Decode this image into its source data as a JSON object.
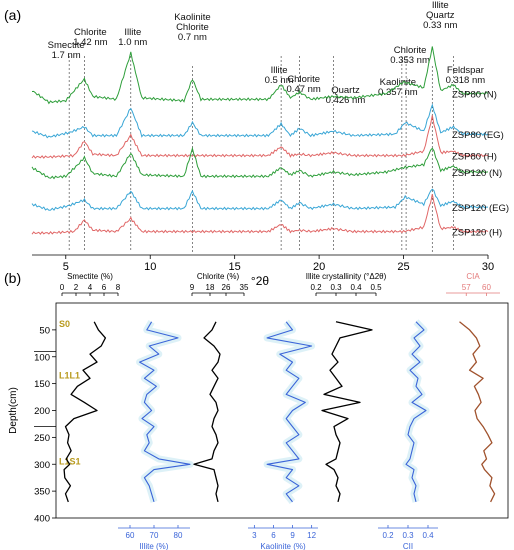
{
  "panel_labels": {
    "a": "(a)",
    "b": "(b)"
  },
  "chart_data": [
    {
      "type": "line",
      "panel": "(a)",
      "xlabel": "°2θ",
      "ylabel": "",
      "xlim": [
        3,
        30
      ],
      "xticks": [
        5,
        10,
        15,
        20,
        25,
        30
      ],
      "series_colors": {
        "N": "#2e9e3a",
        "EG": "#39a6d6",
        "H": "#e06666"
      },
      "peak_markers": [
        {
          "label": "Smectite\n1.7 nm",
          "x": 5.2
        },
        {
          "label": "Chlorite\n1.42 nm",
          "x": 6.1
        },
        {
          "label": "Illite\n1.0 nm",
          "x": 8.85
        },
        {
          "label": "Kaolinite\nChlorite\n0.7 nm",
          "x": 12.5
        },
        {
          "label": "Illite\n0.5 nm",
          "x": 17.75
        },
        {
          "label": "Chlorite\n0.47 nm",
          "x": 18.85
        },
        {
          "label": "Quartz\n0.426 nm",
          "x": 20.85
        },
        {
          "label": "Kaolinite\n0.357 nm",
          "x": 24.9
        },
        {
          "label": "Chlorite\n0.353 nm",
          "x": 25.15
        },
        {
          "label": "Illite\nQuartz\n0.33 nm",
          "x": 26.7
        },
        {
          "label": "Feldspar\n0.318 nm",
          "x": 27.95
        }
      ],
      "series": [
        {
          "name": "ZSP80 (N)",
          "group": "ZSP80",
          "treatment": "N",
          "x": [
            3,
            4,
            5,
            5.8,
            6.1,
            6.6,
            8,
            8.85,
            9.5,
            12,
            12.5,
            13,
            17,
            17.75,
            18.3,
            18.85,
            19.5,
            20.85,
            22,
            24,
            25,
            26.2,
            26.7,
            27.2,
            27.95,
            28.5,
            30
          ],
          "y": [
            0.6,
            0.2,
            0.25,
            0.8,
            1.0,
            0.4,
            0.3,
            1.9,
            0.35,
            0.25,
            1.0,
            0.3,
            0.3,
            0.8,
            0.35,
            0.55,
            0.3,
            0.4,
            0.35,
            0.5,
            0.9,
            0.7,
            2.1,
            0.6,
            0.8,
            0.5,
            0.5
          ]
        },
        {
          "name": "ZSP80 (EG)",
          "group": "ZSP80",
          "treatment": "EG",
          "x": [
            3,
            4,
            5.2,
            6.1,
            6.6,
            8,
            8.85,
            9.5,
            12,
            12.5,
            13,
            17,
            17.75,
            18.3,
            18.85,
            19.5,
            20.85,
            22,
            24.5,
            25.1,
            26.2,
            26.7,
            27.2,
            27.95,
            28.5,
            30
          ],
          "y": [
            0.2,
            0.0,
            0.15,
            0.35,
            0.05,
            0.05,
            1.0,
            0.05,
            0.05,
            0.5,
            0.05,
            0.05,
            0.45,
            0.05,
            0.3,
            0.05,
            0.2,
            0.05,
            0.1,
            0.5,
            0.2,
            1.1,
            0.15,
            0.35,
            0.1,
            0.1
          ]
        },
        {
          "name": "ZSP80 (H)",
          "group": "ZSP80",
          "treatment": "H",
          "x": [
            3,
            4,
            5.5,
            6.1,
            6.6,
            8,
            8.85,
            9.5,
            12,
            12.5,
            13,
            17,
            17.75,
            18.3,
            18.85,
            19.5,
            20.85,
            22,
            25,
            26.2,
            26.7,
            27.2,
            27.95,
            28.5,
            30
          ],
          "y": [
            0.0,
            0.0,
            0.05,
            0.55,
            0.1,
            0.05,
            0.75,
            0.05,
            0.05,
            0.05,
            0.05,
            0.05,
            0.35,
            0.05,
            0.1,
            0.05,
            0.15,
            0.05,
            0.05,
            0.2,
            1.4,
            0.15,
            0.2,
            0.05,
            0.05
          ]
        },
        {
          "name": "ZSP120 (N)",
          "group": "ZSP120",
          "treatment": "N",
          "x": [
            3,
            4,
            5,
            5.8,
            6.1,
            6.6,
            8,
            8.85,
            9.5,
            12,
            12.5,
            13,
            17,
            17.75,
            18.3,
            18.85,
            19.5,
            20.85,
            22,
            24,
            25,
            26.2,
            26.7,
            27.2,
            27.95,
            28.5,
            30
          ],
          "y": [
            0.6,
            0.25,
            0.3,
            0.75,
            0.95,
            0.4,
            0.3,
            1.1,
            0.35,
            0.3,
            1.25,
            0.3,
            0.3,
            0.6,
            0.35,
            0.5,
            0.3,
            0.45,
            0.35,
            0.45,
            0.6,
            0.7,
            1.3,
            0.5,
            0.65,
            0.45,
            0.45
          ]
        },
        {
          "name": "ZSP120 (EG)",
          "group": "ZSP120",
          "treatment": "EG",
          "x": [
            3,
            4,
            5.2,
            6.1,
            6.6,
            8,
            8.85,
            9.5,
            12,
            12.5,
            13,
            17,
            17.75,
            18.3,
            18.85,
            19.5,
            20.85,
            22,
            24.5,
            25.1,
            26.2,
            26.7,
            27.2,
            27.95,
            28.5,
            30
          ],
          "y": [
            0.2,
            0.0,
            0.15,
            0.35,
            0.05,
            0.05,
            0.65,
            0.05,
            0.05,
            0.65,
            0.05,
            0.05,
            0.35,
            0.05,
            0.25,
            0.05,
            0.2,
            0.05,
            0.1,
            0.45,
            0.2,
            0.75,
            0.15,
            0.3,
            0.1,
            0.1
          ]
        },
        {
          "name": "ZSP120 (H)",
          "group": "ZSP120",
          "treatment": "H",
          "x": [
            3,
            4,
            5.5,
            6.1,
            6.6,
            8,
            8.85,
            9.5,
            12,
            12.5,
            13,
            17,
            17.75,
            18.3,
            18.85,
            19.5,
            20.85,
            22,
            25,
            26.2,
            26.7,
            27.2,
            27.95,
            28.5,
            30
          ],
          "y": [
            0.0,
            0.0,
            0.05,
            0.45,
            0.1,
            0.05,
            0.5,
            0.05,
            0.05,
            0.05,
            0.05,
            0.05,
            0.3,
            0.05,
            0.1,
            0.05,
            0.15,
            0.05,
            0.05,
            0.2,
            1.3,
            0.15,
            0.2,
            0.05,
            0.05
          ]
        }
      ],
      "grid": false
    },
    {
      "type": "line",
      "panel": "(b)",
      "orientation": "vertical-profile",
      "ylabel": "Depth(cm)",
      "ylim": [
        0,
        400
      ],
      "yticks": [
        50,
        100,
        150,
        200,
        250,
        300,
        350,
        400
      ],
      "stratigraphic_units": [
        {
          "label": "S0",
          "top": 0,
          "bottom": 90
        },
        {
          "label": "L1L1",
          "top": 90,
          "bottom": 230
        },
        {
          "label": "L1S1",
          "top": 230,
          "bottom": 400
        }
      ],
      "unit_label_color": "#b89a1e",
      "depth": [
        35,
        50,
        65,
        80,
        95,
        110,
        125,
        140,
        155,
        170,
        185,
        200,
        215,
        230,
        245,
        260,
        275,
        290,
        300,
        310,
        325,
        340,
        355,
        370
      ],
      "tracks": [
        {
          "name": "Smectite (%)",
          "axis_position": "top",
          "xlim": [
            0,
            8
          ],
          "xticks": [
            0,
            2,
            4,
            6,
            8
          ],
          "color": "#000000",
          "values": [
            4.6,
            5.2,
            6.2,
            5.6,
            4.0,
            5.0,
            3.0,
            4.0,
            2.2,
            1.3,
            3.2,
            5.0,
            1.7,
            0.5,
            1.0,
            0.8,
            1.3,
            0.6,
            1.1,
            0.3,
            0.4,
            1.2,
            0.5,
            0.9
          ]
        },
        {
          "name": "Illite (%)",
          "axis_position": "bottom",
          "xlim": [
            55,
            85
          ],
          "xticks": [
            60,
            70,
            80
          ],
          "color": "#3a64d8",
          "values": [
            69,
            67,
            80,
            68,
            72,
            64,
            70,
            66,
            71,
            67,
            66,
            69,
            65,
            70,
            67,
            68,
            66,
            72,
            85,
            70,
            66,
            68,
            69,
            70
          ]
        },
        {
          "name": "Chlorite (%)",
          "axis_position": "top",
          "xlim": [
            9,
            35
          ],
          "xticks": [
            9,
            18,
            26,
            35
          ],
          "color": "#000000",
          "values": [
            21,
            19,
            15,
            20,
            23,
            22,
            19,
            22,
            20,
            18,
            21,
            22,
            20,
            19,
            21,
            22,
            20,
            19,
            10,
            20,
            21,
            22,
            21,
            22
          ]
        },
        {
          "name": "Kaolinite (%)",
          "axis_position": "bottom",
          "xlim": [
            2,
            13
          ],
          "xticks": [
            3,
            6,
            9,
            12
          ],
          "color": "#3a64d8",
          "values": [
            8,
            9,
            5,
            12,
            7,
            9,
            8,
            10,
            9,
            8,
            11,
            9,
            8,
            9,
            10,
            8,
            9,
            10,
            5,
            9,
            8,
            10,
            8,
            9
          ]
        },
        {
          "name": "Illite crystallinity (°Δ2θ)",
          "axis_position": "top",
          "xlim": [
            0.2,
            0.5
          ],
          "xticks": [
            0.2,
            0.3,
            0.4,
            0.5
          ],
          "color": "#000000",
          "values": [
            0.3,
            0.48,
            0.32,
            0.3,
            0.28,
            0.31,
            0.27,
            0.3,
            0.33,
            0.24,
            0.42,
            0.23,
            0.36,
            0.29,
            0.3,
            0.32,
            0.31,
            0.3,
            0.25,
            0.29,
            0.31,
            0.3,
            0.32,
            0.31
          ]
        },
        {
          "name": "CII",
          "axis_position": "bottom",
          "xlim": [
            0.15,
            0.45
          ],
          "xticks": [
            0.2,
            0.3,
            0.4
          ],
          "color": "#3a64d8",
          "values": [
            0.34,
            0.38,
            0.33,
            0.36,
            0.32,
            0.36,
            0.31,
            0.35,
            0.34,
            0.37,
            0.32,
            0.39,
            0.33,
            0.31,
            0.3,
            0.33,
            0.32,
            0.31,
            0.29,
            0.33,
            0.32,
            0.34,
            0.33,
            0.34
          ]
        },
        {
          "name": "CIA",
          "axis_position": "top",
          "xlim": [
            54,
            62
          ],
          "xticks": [
            57,
            60
          ],
          "color": "#a0522d",
          "axis_color": "#e37a7a",
          "values": [
            56,
            57.5,
            58.5,
            59,
            58,
            58.5,
            57.5,
            59.5,
            58.2,
            58.8,
            59.2,
            58.3,
            58.6,
            59.5,
            60.2,
            60.8,
            59.6,
            60.0,
            59.3,
            59.7,
            60.8,
            60.5,
            61.2,
            60.6
          ]
        }
      ],
      "grid": false
    }
  ]
}
